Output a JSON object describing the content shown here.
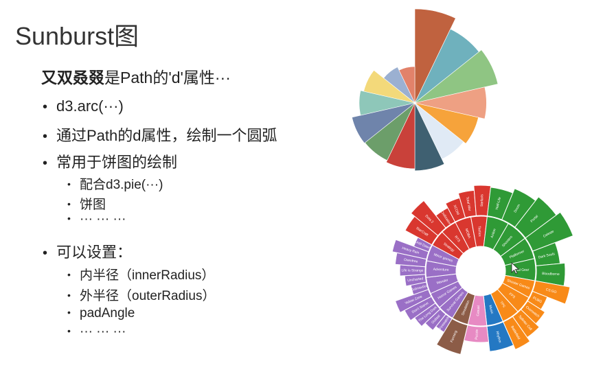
{
  "slide": {
    "title": "Sunburst图",
    "subtitle_bold": "又双叒叕",
    "subtitle_rest": "是Path的'd'属性···",
    "bullets": [
      {
        "level": 1,
        "text": "d3.arc(···)"
      },
      {
        "level": 1,
        "text": "通过Path的d属性，绘制一个圆弧"
      },
      {
        "level": 1,
        "text": "常用于饼图的绘制"
      },
      {
        "level": 2,
        "text": "配合d3.pie(···)"
      },
      {
        "level": 2,
        "text": "饼图"
      },
      {
        "level": 2,
        "text": "··· ··· ···"
      },
      {
        "level": 1,
        "text": "可以设置："
      },
      {
        "level": 2,
        "text": "内半径（innerRadius）"
      },
      {
        "level": 2,
        "text": "外半径（outerRadius）"
      },
      {
        "level": 2,
        "text": "padAngle"
      },
      {
        "level": 2,
        "text": "··· ··· ···"
      }
    ]
  },
  "rose_chart": {
    "slices": [
      {
        "value": 1.0,
        "color": "#c0623f"
      },
      {
        "value": 0.76,
        "color": "#6fb1bd"
      },
      {
        "value": 0.82,
        "color": "#8fc583"
      },
      {
        "value": 0.58,
        "color": "#eea083"
      },
      {
        "value": 0.48,
        "color": "#f6a33b"
      },
      {
        "value": 0.44,
        "color": "#e0eaf5"
      },
      {
        "value": 0.52,
        "color": "#3f6071"
      },
      {
        "value": 0.49,
        "color": "#c9413a"
      },
      {
        "value": 0.46,
        "color": "#6c9e6a"
      },
      {
        "value": 0.47,
        "color": "#6f84ab"
      },
      {
        "value": 0.35,
        "color": "#8ec7b9"
      },
      {
        "value": 0.31,
        "color": "#f3d97a"
      },
      {
        "value": 0.18,
        "color": "#9bb0d1"
      },
      {
        "value": 0.15,
        "color": "#e2826a"
      }
    ]
  },
  "sunburst_chart": {
    "groups": [
      {
        "name": "Adventure",
        "value": 70,
        "color": "#9a6fc6",
        "children": [
          "Survival Games",
          "Horror Games",
          "Wander",
          "Adventure",
          "Minor games"
        ],
        "leaves": [
          "Firewatch",
          "Outlast",
          "The Long Dark",
          "Don't Starve",
          "Yellow Zone",
          "Subnautica",
          "Uncharted",
          "Life is Strange",
          "Oxenfree",
          "Heavy Rain",
          "Until Dawn"
        ]
      },
      {
        "name": "Strategy",
        "value": 55,
        "color": "#d9372f",
        "children": [
          "Strategy",
          "RTS",
          "MOBA",
          "Tactics"
        ],
        "leaves": [
          "StarCraft",
          "Dota 2",
          "Civilization",
          "XCOM",
          "Total War",
          "Stellaris"
        ]
      },
      {
        "name": "Action",
        "value": 75,
        "color": "#2f9a36",
        "children": [
          "Action",
          "Shooters",
          "Platformer",
          "Metal Gear"
        ],
        "leaves": [
          "Half-Life",
          "Doom",
          "Portal",
          "Celeste",
          "Dark Souls",
          "Bloodborne"
        ]
      },
      {
        "name": "Shooter Games",
        "value": 45,
        "color": "#f88a18",
        "children": [
          "Shooter Games",
          "FPS",
          "TPS"
        ],
        "leaves": [
          "CS:GO",
          "PUBG",
          "Overwatch",
          "Splinter Cell",
          "Battlefield"
        ]
      },
      {
        "name": "Music",
        "value": 14,
        "color": "#2478c3",
        "children": [
          "Music"
        ],
        "leaves": [
          "Rhythm"
        ]
      },
      {
        "name": "Casual",
        "value": 16,
        "color": "#e78ac3",
        "children": [
          "Casual"
        ],
        "leaves": [
          "Puzzle"
        ]
      },
      {
        "name": "Simulation",
        "value": 14,
        "color": "#8c5c47",
        "children": [
          "Simulation"
        ],
        "leaves": [
          "Farming"
        ]
      }
    ]
  }
}
